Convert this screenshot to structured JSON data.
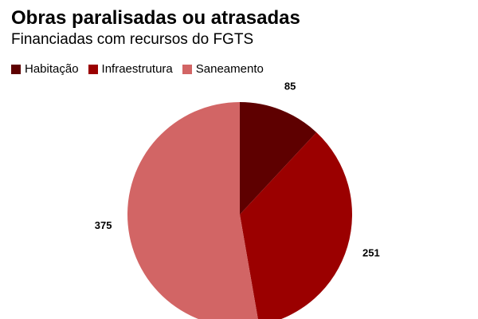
{
  "chart_data": {
    "type": "pie",
    "title": "Obras paralisadas ou atrasadas",
    "subtitle": "Financiadas com recursos do FGTS",
    "legend_position": "top-left",
    "categories": [
      "Habitação",
      "Infraestrutura",
      "Saneamento"
    ],
    "values": [
      85,
      251,
      375
    ],
    "colors": [
      "#5e0000",
      "#9b0000",
      "#d26565"
    ],
    "start_angle_deg": 0,
    "direction": "clockwise"
  }
}
